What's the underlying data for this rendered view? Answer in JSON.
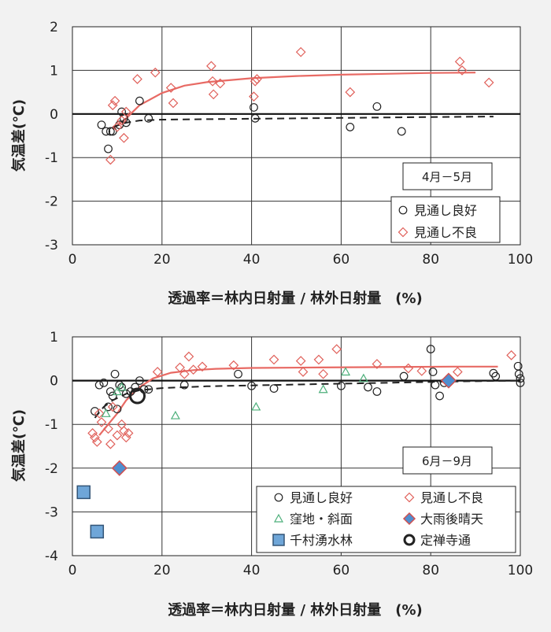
{
  "colors": {
    "good": "#222222",
    "poor": "#e0605a",
    "hollow": "#4caf7a",
    "rain_fill": "#4f8fd0",
    "rain_stroke": "#d05050",
    "senju_fill": "#6fa6d8",
    "senju_stroke": "#335577",
    "fit_poor": "#e86a64",
    "fit_good": "#222222"
  },
  "chart_data": [
    {
      "type": "scatter",
      "ylabel": "気温差(℃)",
      "xlabel": "透過率＝林内日射量 / 林外日射量　(%)",
      "xlim": [
        0,
        100
      ],
      "ylim": [
        -3,
        2
      ],
      "x_ticks": [
        0,
        20,
        40,
        60,
        80,
        100
      ],
      "y_ticks": [
        2,
        1,
        0,
        -1,
        -2,
        -3
      ],
      "grid": true,
      "period_label": "4月－5月",
      "legend_position": "bottom-right",
      "legend": [
        {
          "label": "見通し良好",
          "marker": "circle",
          "color": "good"
        },
        {
          "label": "見通し不良",
          "marker": "diamond",
          "color": "poor"
        }
      ],
      "series": [
        {
          "name": "見通し良好",
          "marker": "circle",
          "color": "good",
          "points": [
            [
              6.5,
              -0.25
            ],
            [
              7.5,
              -0.4
            ],
            [
              8,
              -0.8
            ],
            [
              8.5,
              -0.4
            ],
            [
              9,
              -0.4
            ],
            [
              10.5,
              -0.25
            ],
            [
              11,
              0.05
            ],
            [
              11.5,
              -0.1
            ],
            [
              12,
              -0.2
            ],
            [
              15,
              0.3
            ],
            [
              17,
              -0.1
            ],
            [
              40.5,
              0.15
            ],
            [
              40.8,
              -0.1
            ],
            [
              62,
              -0.3
            ],
            [
              68,
              0.17
            ],
            [
              73.5,
              -0.4
            ]
          ]
        },
        {
          "name": "見通し不良",
          "marker": "diamond",
          "color": "poor",
          "points": [
            [
              8.5,
              -1.05
            ],
            [
              9,
              0.2
            ],
            [
              9.5,
              0.3
            ],
            [
              10,
              -0.3
            ],
            [
              11,
              -0.15
            ],
            [
              11.5,
              -0.55
            ],
            [
              12,
              0.05
            ],
            [
              14.5,
              0.8
            ],
            [
              18.5,
              0.95
            ],
            [
              22,
              0.6
            ],
            [
              22.5,
              0.25
            ],
            [
              31,
              1.1
            ],
            [
              31.3,
              0.75
            ],
            [
              31.5,
              0.45
            ],
            [
              33,
              0.7
            ],
            [
              40.5,
              0.4
            ],
            [
              40.8,
              0.75
            ],
            [
              41.2,
              0.8
            ],
            [
              51,
              1.42
            ],
            [
              62,
              0.5
            ],
            [
              86.5,
              1.2
            ],
            [
              87,
              1.0
            ],
            [
              93,
              0.72
            ]
          ]
        }
      ],
      "fit_lines": [
        {
          "name": "見通し不良",
          "style": "solid",
          "color": "fit_poor",
          "points": [
            [
              9,
              -0.35
            ],
            [
              12,
              -0.1
            ],
            [
              15,
              0.2
            ],
            [
              20,
              0.48
            ],
            [
              25,
              0.65
            ],
            [
              30,
              0.73
            ],
            [
              40,
              0.82
            ],
            [
              50,
              0.87
            ],
            [
              60,
              0.9
            ],
            [
              70,
              0.92
            ],
            [
              80,
              0.94
            ],
            [
              90,
              0.95
            ]
          ]
        },
        {
          "name": "見通し良好",
          "style": "dashed",
          "color": "fit_good",
          "points": [
            [
              9,
              -0.3
            ],
            [
              12,
              -0.2
            ],
            [
              15,
              -0.15
            ],
            [
              20,
              -0.13
            ],
            [
              30,
              -0.12
            ],
            [
              40,
              -0.11
            ],
            [
              60,
              -0.09
            ],
            [
              80,
              -0.07
            ],
            [
              94,
              -0.06
            ]
          ]
        }
      ]
    },
    {
      "type": "scatter",
      "ylabel": "気温差(℃)",
      "xlabel": "透過率＝林内日射量 / 林外日射量　(%)",
      "xlim": [
        0,
        100
      ],
      "ylim": [
        -4,
        1
      ],
      "x_ticks": [
        0,
        20,
        40,
        60,
        80,
        100
      ],
      "y_ticks": [
        1,
        0,
        -1,
        -2,
        -3,
        -4
      ],
      "grid": true,
      "period_label": "6月－9月",
      "legend_position": "bottom-right",
      "legend": [
        {
          "label": "見通し良好",
          "marker": "circle",
          "color": "good"
        },
        {
          "label": "見通し不良",
          "marker": "diamond",
          "color": "poor"
        },
        {
          "label": "窪地・斜面",
          "marker": "triangle",
          "color": "hollow"
        },
        {
          "label": "大雨後晴天",
          "marker": "diamond-filled",
          "color": "rain"
        },
        {
          "label": "千村湧水林",
          "marker": "square",
          "color": "senju"
        },
        {
          "label": "定禅寺通",
          "marker": "bold-circle",
          "color": "good"
        }
      ],
      "series": [
        {
          "name": "見通し良好",
          "marker": "circle",
          "color": "good",
          "points": [
            [
              5,
              -0.7
            ],
            [
              6,
              -0.1
            ],
            [
              7,
              -0.05
            ],
            [
              8,
              -0.6
            ],
            [
              8.5,
              -0.25
            ],
            [
              9,
              -0.35
            ],
            [
              9.5,
              0.15
            ],
            [
              10,
              -0.65
            ],
            [
              10.5,
              -0.1
            ],
            [
              11,
              -0.15
            ],
            [
              12,
              -0.3
            ],
            [
              13,
              -0.25
            ],
            [
              14,
              -0.15
            ],
            [
              15,
              0.0
            ],
            [
              16,
              -0.2
            ],
            [
              17,
              -0.2
            ],
            [
              25,
              -0.1
            ],
            [
              37,
              0.15
            ],
            [
              40,
              -0.12
            ],
            [
              45,
              -0.18
            ],
            [
              60,
              -0.12
            ],
            [
              66,
              -0.15
            ],
            [
              68,
              -0.25
            ],
            [
              74,
              0.1
            ],
            [
              80,
              0.72
            ],
            [
              80.5,
              0.2
            ],
            [
              81,
              -0.1
            ],
            [
              82,
              -0.35
            ],
            [
              83,
              -0.05
            ],
            [
              94,
              0.17
            ],
            [
              94.5,
              0.1
            ],
            [
              99.5,
              0.33
            ],
            [
              99.7,
              0.15
            ],
            [
              100,
              0.05
            ],
            [
              100,
              -0.05
            ]
          ]
        },
        {
          "name": "見通し不良",
          "marker": "diamond",
          "color": "poor",
          "points": [
            [
              4.5,
              -1.2
            ],
            [
              5,
              -1.3
            ],
            [
              5.5,
              -1.4
            ],
            [
              6,
              -0.75
            ],
            [
              6.5,
              -0.95
            ],
            [
              8,
              -1.1
            ],
            [
              8.5,
              -1.45
            ],
            [
              9,
              -0.6
            ],
            [
              10,
              -1.25
            ],
            [
              11,
              -1.0
            ],
            [
              11.5,
              -1.15
            ],
            [
              12,
              -1.3
            ],
            [
              12.5,
              -1.2
            ],
            [
              19,
              0.2
            ],
            [
              24,
              0.3
            ],
            [
              25,
              0.15
            ],
            [
              26,
              0.55
            ],
            [
              27,
              0.25
            ],
            [
              29,
              0.32
            ],
            [
              36,
              0.35
            ],
            [
              45,
              0.48
            ],
            [
              51,
              0.45
            ],
            [
              51.5,
              0.2
            ],
            [
              55,
              0.48
            ],
            [
              56,
              0.15
            ],
            [
              59,
              0.72
            ],
            [
              68,
              0.38
            ],
            [
              75,
              0.28
            ],
            [
              78,
              0.22
            ],
            [
              86,
              0.2
            ],
            [
              98,
              0.58
            ]
          ]
        },
        {
          "name": "窪地・斜面",
          "marker": "triangle",
          "color": "hollow",
          "points": [
            [
              7.5,
              -0.75
            ],
            [
              10,
              -0.25
            ],
            [
              11,
              -0.15
            ],
            [
              23,
              -0.8
            ],
            [
              41,
              -0.6
            ],
            [
              56,
              -0.2
            ],
            [
              61,
              0.2
            ],
            [
              65,
              0.05
            ]
          ]
        },
        {
          "name": "大雨後晴天",
          "marker": "diamond-filled",
          "color": "rain",
          "points": [
            [
              10.5,
              -2.0
            ],
            [
              84,
              0.0
            ]
          ]
        },
        {
          "name": "千村湧水林",
          "marker": "square",
          "color": "senju",
          "points": [
            [
              2.5,
              -2.55
            ],
            [
              5.5,
              -3.45
            ]
          ]
        },
        {
          "name": "定禅寺通",
          "marker": "bold-circle",
          "color": "good",
          "points": [
            [
              14.5,
              -0.35
            ]
          ]
        }
      ],
      "fit_lines": [
        {
          "name": "見通し不良",
          "style": "solid",
          "color": "fit_poor",
          "points": [
            [
              6,
              -1.25
            ],
            [
              8,
              -1.0
            ],
            [
              10,
              -0.75
            ],
            [
              12,
              -0.45
            ],
            [
              15,
              -0.15
            ],
            [
              18,
              0.05
            ],
            [
              22,
              0.18
            ],
            [
              27,
              0.24
            ],
            [
              32,
              0.27
            ],
            [
              40,
              0.29
            ],
            [
              55,
              0.3
            ],
            [
              70,
              0.31
            ],
            [
              85,
              0.32
            ],
            [
              95,
              0.32
            ]
          ]
        },
        {
          "name": "見通し良好",
          "style": "dashed",
          "color": "fit_good",
          "points": [
            [
              5,
              -0.85
            ],
            [
              7,
              -0.6
            ],
            [
              9,
              -0.45
            ],
            [
              12,
              -0.3
            ],
            [
              15,
              -0.22
            ],
            [
              20,
              -0.17
            ],
            [
              30,
              -0.13
            ],
            [
              40,
              -0.11
            ],
            [
              55,
              -0.08
            ],
            [
              70,
              -0.05
            ],
            [
              85,
              -0.02
            ],
            [
              100,
              0.0
            ]
          ]
        }
      ]
    }
  ]
}
